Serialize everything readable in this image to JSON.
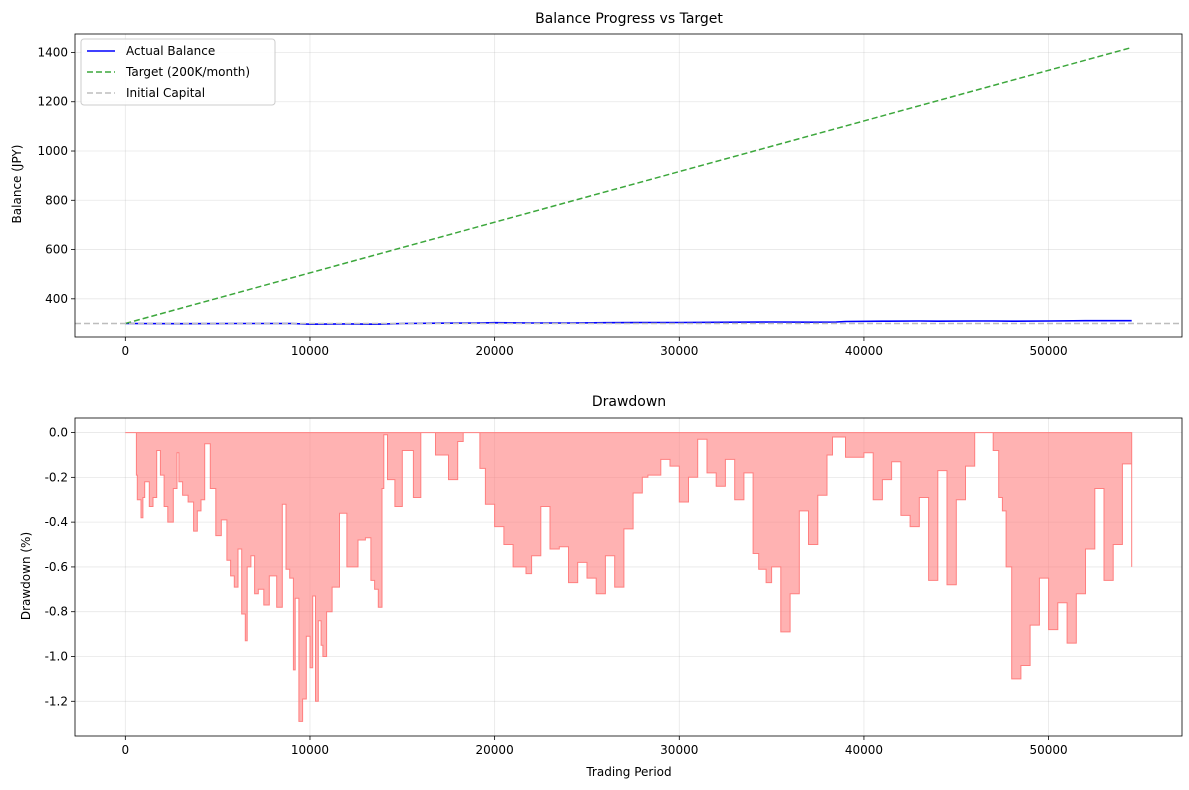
{
  "chart_data": [
    {
      "type": "line",
      "title": "Balance Progress vs Target",
      "xlabel": "",
      "ylabel": "Balance (JPY)",
      "xlim": [
        -2725,
        57225
      ],
      "ylim": [
        245,
        1475
      ],
      "xticks": [
        0,
        10000,
        20000,
        30000,
        40000,
        50000
      ],
      "xtick_labels": [
        "0",
        "10000",
        "20000",
        "30000",
        "40000",
        "50000"
      ],
      "yticks": [
        400,
        600,
        800,
        1000,
        1200,
        1400
      ],
      "ytick_labels": [
        "400",
        "600",
        "800",
        "1000",
        "1200",
        "1400"
      ],
      "grid": true,
      "legend_position": "upper-left",
      "series": [
        {
          "name": "Actual Balance",
          "color": "#0000ff",
          "style": "solid",
          "x": [
            0,
            3000,
            6000,
            9000,
            10000,
            12000,
            13500,
            15000,
            17000,
            19000,
            20000,
            22000,
            24000,
            26000,
            28000,
            30000,
            33000,
            35000,
            37000,
            38500,
            39000,
            41000,
            43000,
            44000,
            46000,
            47000,
            48000,
            50000,
            52000,
            54500
          ],
          "y": [
            300,
            299,
            300,
            300,
            297,
            298,
            297,
            300,
            301,
            302,
            303,
            302,
            302,
            303,
            304,
            304,
            305,
            306,
            305,
            306,
            308,
            309,
            310,
            309,
            310,
            310,
            309,
            310,
            311,
            311
          ]
        },
        {
          "name": "Target (200K/month)",
          "color": "#3ca73c",
          "style": "dashed",
          "x": [
            0,
            54500
          ],
          "y": [
            300,
            1420
          ]
        },
        {
          "name": "Initial Capital",
          "color": "#bdbdbd",
          "style": "dashed",
          "hline": 300
        }
      ]
    },
    {
      "type": "area",
      "title": "Drawdown",
      "xlabel": "Trading Period",
      "ylabel": "Drawdown (%)",
      "xlim": [
        -2725,
        57225
      ],
      "ylim": [
        -1.355,
        0.065
      ],
      "xticks": [
        0,
        10000,
        20000,
        30000,
        40000,
        50000
      ],
      "xtick_labels": [
        "0",
        "10000",
        "20000",
        "30000",
        "40000",
        "50000"
      ],
      "yticks": [
        0.0,
        -0.2,
        -0.4,
        -0.6,
        -0.8,
        -1.0,
        -1.2
      ],
      "ytick_labels": [
        "0.0",
        "-0.2",
        "-0.4",
        "-0.6",
        "-0.8",
        "-1.0",
        "-1.2"
      ],
      "grid": true,
      "fill_color": "#ff7f7f",
      "series": [
        {
          "name": "Drawdown",
          "x": [
            0,
            600,
            650,
            850,
            950,
            1050,
            1300,
            1500,
            1700,
            1900,
            2100,
            2300,
            2600,
            2800,
            2900,
            3100,
            3400,
            3700,
            3900,
            4100,
            4300,
            4600,
            4900,
            5200,
            5500,
            5700,
            5900,
            6100,
            6300,
            6500,
            6600,
            6800,
            7000,
            7200,
            7500,
            7800,
            8200,
            8500,
            8700,
            8900,
            9100,
            9200,
            9400,
            9600,
            9800,
            10000,
            10150,
            10300,
            10450,
            10600,
            10700,
            10900,
            11200,
            11600,
            12000,
            12600,
            13000,
            13300,
            13500,
            13700,
            13900,
            14000,
            14200,
            14600,
            15000,
            15600,
            16000,
            16800,
            17500,
            18000,
            18300,
            19200,
            19500,
            20000,
            20500,
            21000,
            21700,
            22000,
            22500,
            23000,
            23500,
            24000,
            24500,
            25000,
            25500,
            26000,
            26500,
            27000,
            27500,
            28000,
            28300,
            29000,
            29500,
            30000,
            30500,
            31000,
            31500,
            32000,
            32500,
            33000,
            33500,
            34000,
            34300,
            34700,
            35000,
            35500,
            36000,
            36500,
            37000,
            37500,
            38000,
            38300,
            39000,
            40000,
            40500,
            41000,
            41500,
            42000,
            42500,
            43000,
            43500,
            44000,
            44500,
            45000,
            45500,
            46000,
            47000,
            47300,
            47500,
            47700,
            48000,
            48500,
            49000,
            49500,
            50000,
            50500,
            51000,
            51500,
            52000,
            52500,
            53000,
            53500,
            54000,
            54500
          ],
          "y": [
            0.0,
            -0.19,
            -0.3,
            -0.38,
            -0.29,
            -0.22,
            -0.33,
            -0.29,
            -0.08,
            -0.19,
            -0.33,
            -0.4,
            -0.25,
            -0.09,
            -0.22,
            -0.28,
            -0.31,
            -0.44,
            -0.35,
            -0.3,
            -0.05,
            -0.25,
            -0.46,
            -0.39,
            -0.57,
            -0.64,
            -0.69,
            -0.52,
            -0.81,
            -0.93,
            -0.6,
            -0.55,
            -0.72,
            -0.7,
            -0.77,
            -0.64,
            -0.78,
            -0.32,
            -0.61,
            -0.65,
            -1.06,
            -0.74,
            -1.29,
            -1.19,
            -0.91,
            -1.05,
            -0.73,
            -1.2,
            -0.84,
            -0.95,
            -1.0,
            -0.8,
            -0.69,
            -0.36,
            -0.6,
            -0.48,
            -0.47,
            -0.66,
            -0.7,
            -0.78,
            -0.25,
            -0.01,
            -0.21,
            -0.33,
            -0.08,
            -0.29,
            0.0,
            -0.1,
            -0.21,
            -0.04,
            0.0,
            -0.16,
            -0.32,
            -0.42,
            -0.5,
            -0.6,
            -0.63,
            -0.55,
            -0.33,
            -0.52,
            -0.51,
            -0.67,
            -0.58,
            -0.65,
            -0.72,
            -0.55,
            -0.69,
            -0.43,
            -0.27,
            -0.2,
            -0.19,
            -0.12,
            -0.15,
            -0.31,
            -0.2,
            -0.03,
            -0.18,
            -0.24,
            -0.12,
            -0.3,
            -0.18,
            -0.54,
            -0.61,
            -0.67,
            -0.6,
            -0.89,
            -0.72,
            -0.35,
            -0.5,
            -0.28,
            -0.1,
            -0.02,
            -0.11,
            -0.09,
            -0.3,
            -0.21,
            -0.13,
            -0.37,
            -0.42,
            -0.29,
            -0.66,
            -0.17,
            -0.68,
            -0.3,
            -0.15,
            0.0,
            -0.08,
            -0.29,
            -0.35,
            -0.6,
            -1.1,
            -1.04,
            -0.86,
            -0.65,
            -0.88,
            -0.76,
            -0.94,
            -0.72,
            -0.52,
            -0.25,
            -0.66,
            -0.5,
            -0.14,
            -0.6
          ]
        }
      ]
    }
  ]
}
